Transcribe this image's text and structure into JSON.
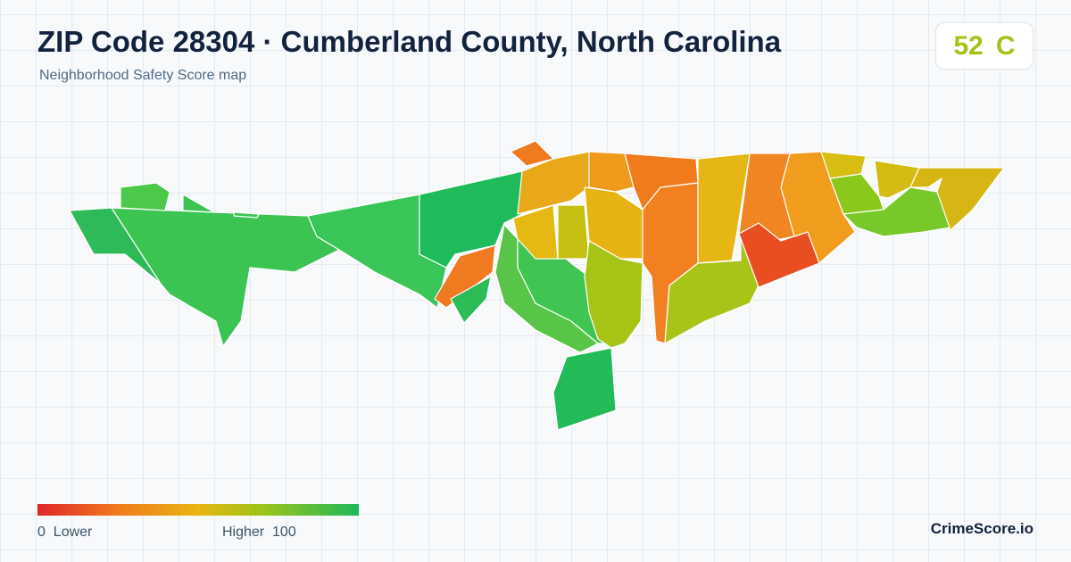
{
  "header": {
    "title": "ZIP Code 28304 · Cumberland County, North Carolina",
    "subtitle": "Neighborhood Safety Score map"
  },
  "score": {
    "value": 52,
    "grade": "C"
  },
  "legend": {
    "min": 0,
    "min_label": "Lower",
    "max_label": "Higher",
    "max": 100
  },
  "brand": "CrimeScore.io"
}
